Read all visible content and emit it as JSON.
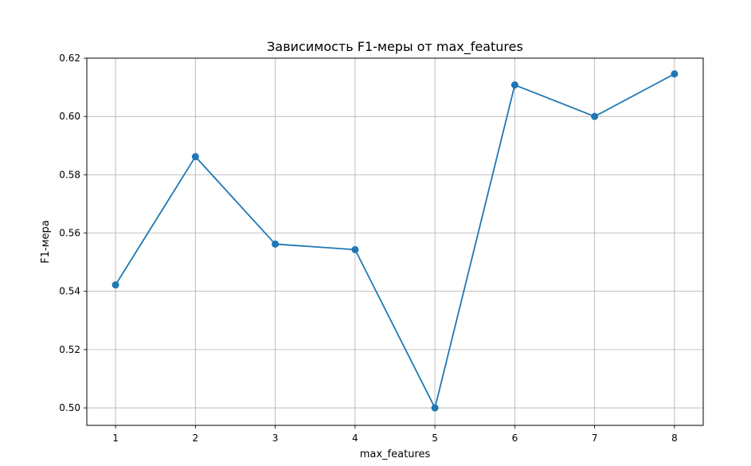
{
  "chart_data": {
    "type": "line",
    "title": "Зависимость F1-меры от max_features",
    "xlabel": "max_features",
    "ylabel": "F1-мера",
    "x": [
      1,
      2,
      3,
      4,
      5,
      6,
      7,
      8
    ],
    "series": [
      {
        "values": [
          0.5422,
          0.5862,
          0.5562,
          0.5543,
          0.5,
          0.6108,
          0.6,
          0.6146
        ],
        "color": "#1f77b4",
        "marker": "circle"
      }
    ],
    "xlim": [
      0.64,
      8.36
    ],
    "ylim": [
      0.494,
      0.62
    ],
    "xticks": [
      "1",
      "2",
      "3",
      "4",
      "5",
      "6",
      "7",
      "8"
    ],
    "yticks": [
      "0.50",
      "0.52",
      "0.54",
      "0.56",
      "0.58",
      "0.60",
      "0.62"
    ],
    "grid": true,
    "legend": "none"
  }
}
